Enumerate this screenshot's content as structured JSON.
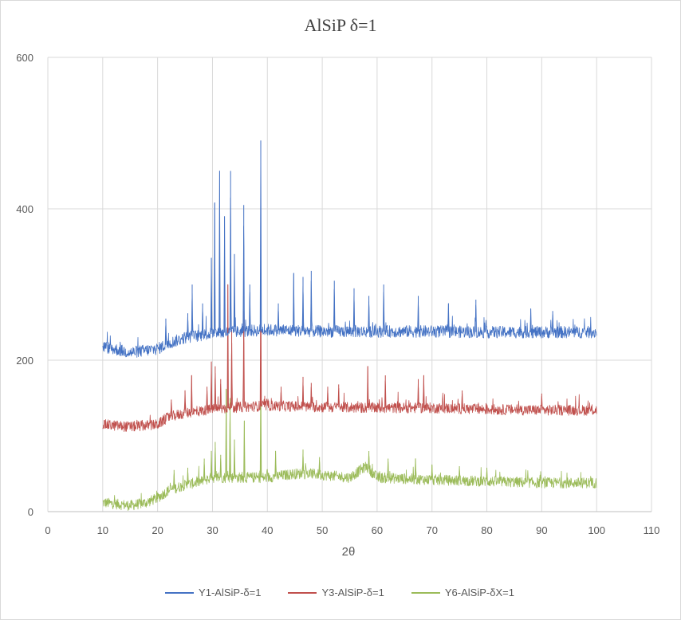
{
  "chart_data": {
    "type": "line",
    "title": "AlSiP δ=1",
    "xlabel": "2θ",
    "ylabel": "",
    "xlim": [
      0,
      110
    ],
    "ylim": [
      0,
      600
    ],
    "x_ticks": [
      "0",
      "10",
      "20",
      "30",
      "40",
      "50",
      "60",
      "70",
      "80",
      "90",
      "100",
      "110"
    ],
    "y_ticks": [
      "0",
      "200",
      "400",
      "600"
    ],
    "grid": "vertical and horizontal",
    "legend_position": "bottom",
    "series": [
      {
        "name": "Y1-AlSiP-δ=1",
        "color": "#4472c4",
        "profile": [
          [
            10,
            218
          ],
          [
            15,
            210
          ],
          [
            20,
            215
          ],
          [
            22,
            222
          ],
          [
            25,
            230
          ],
          [
            30,
            235
          ],
          [
            35,
            238
          ],
          [
            40,
            240
          ],
          [
            50,
            238
          ],
          [
            60,
            238
          ],
          [
            70,
            238
          ],
          [
            80,
            237
          ],
          [
            90,
            237
          ],
          [
            100,
            237
          ]
        ],
        "noise": 8,
        "peaks": [
          [
            21.5,
            255
          ],
          [
            25.5,
            262
          ],
          [
            26.3,
            300
          ],
          [
            28.2,
            275
          ],
          [
            29.8,
            335
          ],
          [
            30.4,
            408
          ],
          [
            31.3,
            450
          ],
          [
            32.2,
            390
          ],
          [
            33.3,
            450
          ],
          [
            34.0,
            340
          ],
          [
            35.7,
            405
          ],
          [
            36.8,
            300
          ],
          [
            38.8,
            490
          ],
          [
            42.0,
            275
          ],
          [
            44.8,
            315
          ],
          [
            46.5,
            310
          ],
          [
            48.0,
            318
          ],
          [
            52.2,
            305
          ],
          [
            55.8,
            295
          ],
          [
            58.5,
            285
          ],
          [
            61.2,
            300
          ],
          [
            67.5,
            285
          ],
          [
            73.0,
            275
          ],
          [
            78.0,
            280
          ],
          [
            88.0,
            268
          ],
          [
            92.0,
            265
          ]
        ]
      },
      {
        "name": "Y3-AlSiP-δ=1",
        "color": "#c0504d",
        "profile": [
          [
            10,
            115
          ],
          [
            15,
            112
          ],
          [
            20,
            115
          ],
          [
            22,
            125
          ],
          [
            25,
            130
          ],
          [
            30,
            135
          ],
          [
            35,
            138
          ],
          [
            40,
            140
          ],
          [
            50,
            138
          ],
          [
            60,
            137
          ],
          [
            70,
            137
          ],
          [
            80,
            135
          ],
          [
            90,
            134
          ],
          [
            100,
            134
          ]
        ],
        "noise": 7,
        "peaks": [
          [
            22.5,
            148
          ],
          [
            25.0,
            160
          ],
          [
            26.2,
            180
          ],
          [
            29.0,
            165
          ],
          [
            29.8,
            198
          ],
          [
            30.5,
            192
          ],
          [
            31.5,
            175
          ],
          [
            32.8,
            300
          ],
          [
            33.5,
            240
          ],
          [
            35.7,
            265
          ],
          [
            38.8,
            330
          ],
          [
            42.5,
            165
          ],
          [
            46.5,
            178
          ],
          [
            48.0,
            170
          ],
          [
            51.0,
            165
          ],
          [
            53.0,
            168
          ],
          [
            58.3,
            192
          ],
          [
            61.5,
            180
          ],
          [
            67.5,
            175
          ],
          [
            68.5,
            180
          ],
          [
            75.5,
            160
          ],
          [
            90.0,
            156
          ]
        ]
      },
      {
        "name": "Y6-AlSiP-δX=1",
        "color": "#9bbb59",
        "profile": [
          [
            10,
            12
          ],
          [
            15,
            8
          ],
          [
            18,
            12
          ],
          [
            20,
            18
          ],
          [
            22,
            28
          ],
          [
            25,
            35
          ],
          [
            28,
            40
          ],
          [
            30,
            45
          ],
          [
            35,
            45
          ],
          [
            40,
            45
          ],
          [
            45,
            50
          ],
          [
            48,
            50
          ],
          [
            55,
            45
          ],
          [
            58,
            60
          ],
          [
            60,
            45
          ],
          [
            70,
            42
          ],
          [
            80,
            40
          ],
          [
            90,
            38
          ],
          [
            100,
            38
          ]
        ],
        "noise": 7,
        "peaks": [
          [
            23.0,
            55
          ],
          [
            25.5,
            58
          ],
          [
            28.5,
            70
          ],
          [
            29.8,
            80
          ],
          [
            30.5,
            92
          ],
          [
            31.5,
            75
          ],
          [
            32.5,
            162
          ],
          [
            33.2,
            150
          ],
          [
            34.0,
            95
          ],
          [
            35.8,
            120
          ],
          [
            38.8,
            182
          ],
          [
            41.5,
            80
          ],
          [
            46.5,
            82
          ],
          [
            49.5,
            72
          ],
          [
            58.5,
            80
          ],
          [
            62.0,
            70
          ],
          [
            67.0,
            70
          ],
          [
            70.0,
            62
          ],
          [
            75.0,
            60
          ],
          [
            80.0,
            58
          ]
        ]
      }
    ]
  }
}
